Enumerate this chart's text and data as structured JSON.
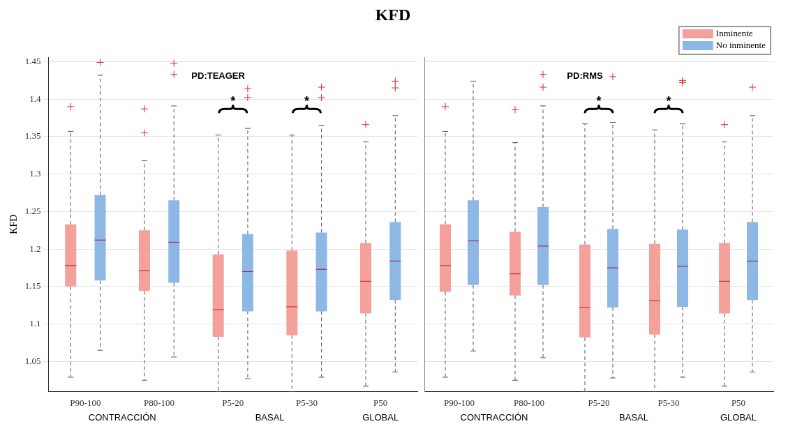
{
  "chart_data": [
    {
      "type": "box",
      "title": "KFD",
      "ylabel": "KFD",
      "categories": [
        "P90-100",
        "P80-100",
        "P5-20",
        "P5-30",
        "P50"
      ],
      "series": [
        {
          "color": "#f4a09b",
          "boxes": [
            {
              "low": 1.029,
              "q1": 1.15,
              "median": 1.178,
              "q3": 1.233,
              "high": 1.357,
              "outliers": [
                1.39
              ]
            },
            {
              "low": 1.025,
              "q1": 1.144,
              "median": 1.171,
              "q3": 1.225,
              "high": 1.318,
              "outliers": [
                1.355,
                1.387
              ]
            },
            {
              "low": 1.01,
              "q1": 1.083,
              "median": 1.119,
              "q3": 1.193,
              "high": 1.352
            },
            {
              "low": 1.01,
              "q1": 1.085,
              "median": 1.123,
              "q3": 1.198,
              "high": 1.352
            },
            {
              "low": 1.017,
              "q1": 1.114,
              "median": 1.157,
              "q3": 1.208,
              "high": 1.343,
              "outliers": [
                1.366
              ]
            }
          ]
        },
        {
          "color": "#8db8e6",
          "boxes": [
            {
              "low": 1.065,
              "q1": 1.158,
              "median": 1.212,
              "q3": 1.272,
              "high": 1.432,
              "outliers": [
                1.449
              ]
            },
            {
              "low": 1.056,
              "q1": 1.155,
              "median": 1.209,
              "q3": 1.265,
              "high": 1.391,
              "outliers": [
                1.433,
                1.448
              ]
            },
            {
              "low": 1.027,
              "q1": 1.117,
              "median": 1.17,
              "q3": 1.22,
              "high": 1.361,
              "outliers": [
                1.402,
                1.414
              ]
            },
            {
              "low": 1.029,
              "q1": 1.117,
              "median": 1.173,
              "q3": 1.222,
              "high": 1.365,
              "outliers": [
                1.402,
                1.416
              ]
            },
            {
              "low": 1.036,
              "q1": 1.132,
              "median": 1.184,
              "q3": 1.236,
              "high": 1.378,
              "outliers": [
                1.415,
                1.424
              ]
            }
          ]
        }
      ],
      "ylim": [
        1.01,
        1.456
      ],
      "yticks": [
        1.05,
        1.1,
        1.15,
        1.2,
        1.25,
        1.3,
        1.35,
        1.4,
        1.45
      ],
      "grid": "y",
      "annotations": [
        "PD:TEAGER",
        "*",
        "*",
        "CONTRACCIÓN",
        "BASAL",
        "GLOBAL"
      ]
    },
    {
      "type": "box",
      "categories": [
        "P90-100",
        "P80-100",
        "P5-20",
        "P5-30",
        "P50"
      ],
      "series": [
        {
          "name": "Inminente",
          "color": "#f4a09b",
          "boxes": [
            {
              "low": 1.029,
              "q1": 1.143,
              "median": 1.178,
              "q3": 1.233,
              "high": 1.357,
              "outliers": [
                1.39
              ]
            },
            {
              "low": 1.025,
              "q1": 1.138,
              "median": 1.167,
              "q3": 1.223,
              "high": 1.342,
              "outliers": [
                1.386
              ]
            },
            {
              "low": 1.01,
              "q1": 1.082,
              "median": 1.122,
              "q3": 1.206,
              "high": 1.367
            },
            {
              "low": 1.01,
              "q1": 1.086,
              "median": 1.131,
              "q3": 1.207,
              "high": 1.359
            },
            {
              "low": 1.017,
              "q1": 1.114,
              "median": 1.157,
              "q3": 1.208,
              "high": 1.343,
              "outliers": [
                1.366
              ]
            }
          ]
        },
        {
          "name": "No inminente",
          "color": "#8db8e6",
          "boxes": [
            {
              "low": 1.064,
              "q1": 1.152,
              "median": 1.211,
              "q3": 1.265,
              "high": 1.424
            },
            {
              "low": 1.055,
              "q1": 1.152,
              "median": 1.204,
              "q3": 1.256,
              "high": 1.391,
              "outliers": [
                1.416,
                1.433
              ]
            },
            {
              "low": 1.028,
              "q1": 1.122,
              "median": 1.175,
              "q3": 1.227,
              "high": 1.369,
              "outliers": [
                1.43
              ]
            },
            {
              "low": 1.029,
              "q1": 1.123,
              "median": 1.177,
              "q3": 1.226,
              "high": 1.367,
              "outliers": [
                1.422,
                1.425
              ]
            },
            {
              "low": 1.036,
              "q1": 1.132,
              "median": 1.184,
              "q3": 1.236,
              "high": 1.378,
              "outliers": [
                1.416
              ]
            }
          ]
        }
      ],
      "ylim": [
        1.01,
        1.456
      ],
      "yticks": [
        1.05,
        1.1,
        1.15,
        1.2,
        1.25,
        1.3,
        1.35,
        1.4,
        1.45
      ],
      "grid": "y",
      "legend": "top right",
      "tick_labels": "x",
      "annotations": [
        "PD:RMS",
        "*",
        "*",
        "CONTRACCIÓN",
        "BASAL",
        "GLOBAL"
      ]
    }
  ]
}
